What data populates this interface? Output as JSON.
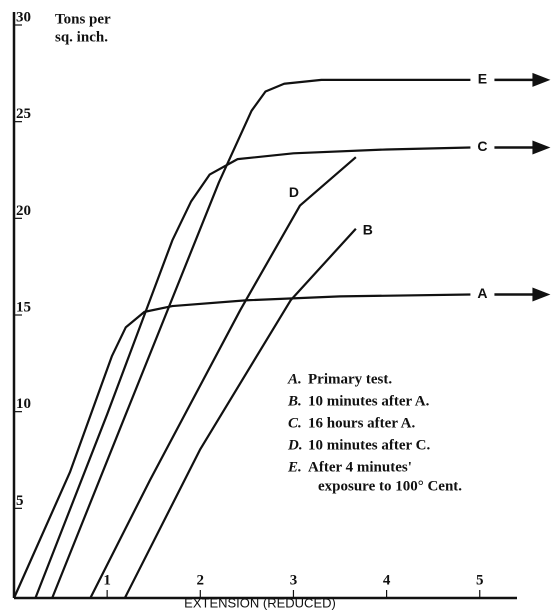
{
  "chart_data": {
    "type": "line",
    "ylabel": [
      "Tons per",
      "sq. inch."
    ],
    "xlabel": "EXTENSION (REDUCED)",
    "xlim": [
      0,
      5.4
    ],
    "ylim": [
      0,
      30
    ],
    "xticks": [
      1,
      2,
      3,
      4,
      5
    ],
    "yticks": [
      5,
      10,
      15,
      20,
      25,
      30
    ],
    "series": [
      {
        "name": "A",
        "color": "#111111",
        "arrow": true,
        "x": [
          0,
          0.6,
          1.05,
          1.2,
          1.4,
          1.7,
          2.5,
          3.5,
          4.9
        ],
        "values": [
          0,
          6.5,
          12.5,
          14,
          14.8,
          15.1,
          15.4,
          15.6,
          15.7
        ]
      },
      {
        "name": "B",
        "color": "#111111",
        "arrow": false,
        "x": [
          1.19,
          2.0,
          2.97,
          3.67
        ],
        "values": [
          0,
          7.7,
          15.4,
          19.1
        ]
      },
      {
        "name": "C",
        "color": "#111111",
        "arrow": true,
        "x": [
          0.23,
          1.0,
          1.7,
          1.9,
          2.1,
          2.4,
          3,
          4,
          4.9
        ],
        "values": [
          0,
          9.5,
          18.5,
          20.5,
          21.9,
          22.7,
          23.0,
          23.2,
          23.3
        ]
      },
      {
        "name": "D",
        "color": "#111111",
        "arrow": false,
        "x": [
          0.82,
          1.46,
          2.43,
          3.07,
          3.67
        ],
        "values": [
          0,
          6.1,
          14.9,
          20.3,
          22.8
        ]
      },
      {
        "name": "E",
        "color": "#111111",
        "arrow": true,
        "x": [
          0.41,
          1.2,
          2.2,
          2.55,
          2.7,
          2.9,
          3.3,
          4,
          4.9
        ],
        "values": [
          0,
          9.5,
          21.5,
          25.2,
          26.2,
          26.6,
          26.8,
          26.8,
          26.8
        ]
      }
    ],
    "legend": [
      {
        "key": "A.",
        "text": [
          "Primary test."
        ]
      },
      {
        "key": "B.",
        "text": [
          "10 minutes after A."
        ]
      },
      {
        "key": "C.",
        "text": [
          "16 hours after A."
        ]
      },
      {
        "key": "D.",
        "text": [
          "10 minutes after C."
        ]
      },
      {
        "key": "E.",
        "text": [
          "After 4 minutes'",
          "exposure to 100° Cent."
        ]
      }
    ]
  }
}
